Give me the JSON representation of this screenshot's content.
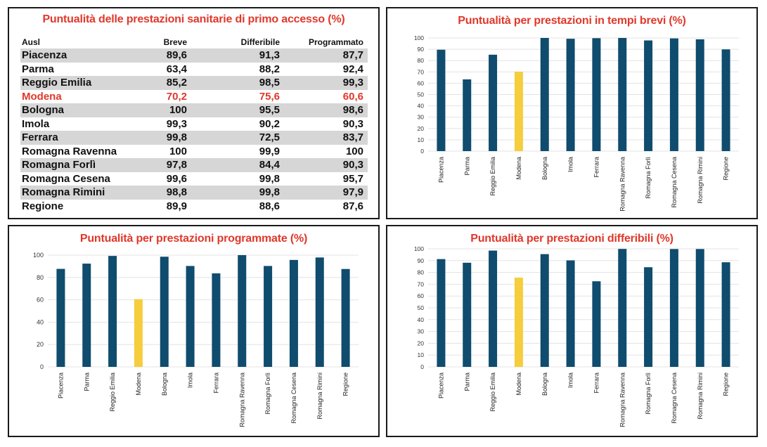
{
  "table": {
    "title": "Puntualità delle prestazioni sanitarie di primo accesso (%)",
    "headers": [
      "Ausl",
      "Breve",
      "Differibile",
      "Programmato"
    ],
    "rows": [
      {
        "name": "Piacenza",
        "breve": "89,6",
        "differibile": "91,3",
        "programmato": "87,7"
      },
      {
        "name": "Parma",
        "breve": "63,4",
        "differibile": "88,2",
        "programmato": "92,4"
      },
      {
        "name": "Reggio Emilia",
        "breve": "85,2",
        "differibile": "98,5",
        "programmato": "99,3"
      },
      {
        "name": "Modena",
        "breve": "70,2",
        "differibile": "75,6",
        "programmato": "60,6"
      },
      {
        "name": "Bologna",
        "breve": "100",
        "differibile": "95,5",
        "programmato": "98,6"
      },
      {
        "name": "Imola",
        "breve": "99,3",
        "differibile": "90,2",
        "programmato": "90,3"
      },
      {
        "name": "Ferrara",
        "breve": "99,8",
        "differibile": "72,5",
        "programmato": "83,7"
      },
      {
        "name": "Romagna Ravenna",
        "breve": "100",
        "differibile": "99,9",
        "programmato": "100"
      },
      {
        "name": "Romagna Forlì",
        "breve": "97,8",
        "differibile": "84,4",
        "programmato": "90,3"
      },
      {
        "name": "Romagna Cesena",
        "breve": "99,6",
        "differibile": "99,8",
        "programmato": "95,7"
      },
      {
        "name": "Romagna Rimini",
        "breve": "98,8",
        "differibile": "99,8",
        "programmato": "97,9"
      },
      {
        "name": "Regione",
        "breve": "89,9",
        "differibile": "88,6",
        "programmato": "87,6"
      }
    ],
    "highlight_row": "Modena"
  },
  "colors": {
    "bar": "#0f4c6e",
    "highlight_bar": "#f5cd3d",
    "title_red": "#e0382b",
    "row_shade": "#d6d6d6",
    "grid": "#e3e3e3"
  },
  "chart_data": [
    {
      "id": "breve",
      "type": "bar",
      "title": "Puntualità per prestazioni in tempi brevi (%)",
      "categories": [
        "Piacenza",
        "Parma",
        "Reggio Emilia",
        "Modena",
        "Bologna",
        "Imola",
        "Ferrara",
        "Romagna Ravenna",
        "Romagna Forlì",
        "Romagna Cesena",
        "Romagna Rimini",
        "Regione"
      ],
      "values": [
        89.6,
        63.4,
        85.2,
        70.2,
        100,
        99.3,
        99.8,
        100,
        97.8,
        99.6,
        98.8,
        89.9
      ],
      "highlight": "Modena",
      "yticks": [
        0,
        10,
        20,
        30,
        40,
        50,
        60,
        70,
        80,
        90,
        100
      ],
      "ylim": [
        0,
        100
      ],
      "xlabel": "",
      "ylabel": "",
      "grid": true,
      "legend": "none"
    },
    {
      "id": "programmato",
      "type": "bar",
      "title": "Puntualità per prestazioni programmate (%)",
      "categories": [
        "Piacenza",
        "Parma",
        "Reggio Emilia",
        "Modena",
        "Bologna",
        "Imola",
        "Ferrara",
        "Romagna Ravenna",
        "Romagna Forlì",
        "Romagna Cesena",
        "Romagna Rimini",
        "Regione"
      ],
      "values": [
        87.7,
        92.4,
        99.3,
        60.6,
        98.6,
        90.3,
        83.7,
        100,
        90.3,
        95.7,
        97.9,
        87.6
      ],
      "highlight": "Modena",
      "yticks": [
        0,
        20,
        40,
        60,
        80,
        100
      ],
      "ylim": [
        0,
        100
      ],
      "xlabel": "",
      "ylabel": "",
      "grid": true,
      "legend": "none"
    },
    {
      "id": "differibile",
      "type": "bar",
      "title": "Puntualità per prestazioni differibili (%)",
      "categories": [
        "Piacenza",
        "Parma",
        "Reggio Emilia",
        "Modena",
        "Bologna",
        "Imola",
        "Ferrara",
        "Romagna Ravenna",
        "Romagna Forlì",
        "Romagna Cesena",
        "Romagna Rimini",
        "Regione"
      ],
      "values": [
        91.3,
        88.2,
        98.5,
        75.6,
        95.5,
        90.2,
        72.5,
        99.9,
        84.4,
        99.8,
        99.8,
        88.6
      ],
      "highlight": "Modena",
      "yticks": [
        0,
        10,
        20,
        30,
        40,
        50,
        60,
        70,
        80,
        90,
        100
      ],
      "ylim": [
        0,
        100
      ],
      "xlabel": "",
      "ylabel": "",
      "grid": true,
      "legend": "none"
    }
  ]
}
